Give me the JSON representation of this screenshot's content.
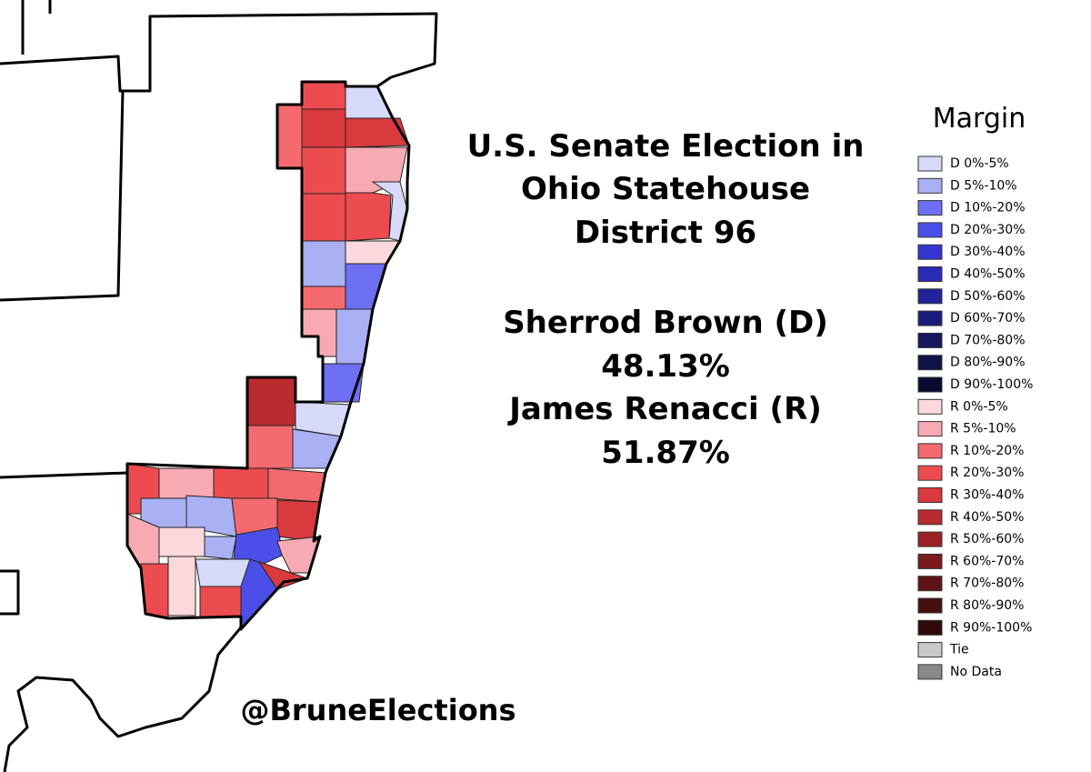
{
  "title": [
    "U.S. Senate Election in",
    "Ohio Statehouse",
    "District 96"
  ],
  "candidates": [
    {
      "name": "Sherrod Brown (D)",
      "share": "48.13%"
    },
    {
      "name": "James Renacci (R)",
      "share": "51.87%"
    }
  ],
  "legend": {
    "title": "Margin",
    "items": [
      {
        "label": "D 0%-5%",
        "color": "#d6d9f7"
      },
      {
        "label": "D 5%-10%",
        "color": "#aab0f4"
      },
      {
        "label": "D 10%-20%",
        "color": "#6d70f2"
      },
      {
        "label": "D 20%-30%",
        "color": "#4b4fe8"
      },
      {
        "label": "D 30%-40%",
        "color": "#3436cf"
      },
      {
        "label": "D 40%-50%",
        "color": "#2a2cb5"
      },
      {
        "label": "D 50%-60%",
        "color": "#22239a"
      },
      {
        "label": "D 60%-70%",
        "color": "#1b1c7a"
      },
      {
        "label": "D 70%-80%",
        "color": "#15165e"
      },
      {
        "label": "D 80%-90%",
        "color": "#101146"
      },
      {
        "label": "D 90%-100%",
        "color": "#0b0b2f"
      },
      {
        "label": "R 0%-5%",
        "color": "#fbd8dc"
      },
      {
        "label": "R 5%-10%",
        "color": "#f8aab2"
      },
      {
        "label": "R 10%-20%",
        "color": "#f46a6e"
      },
      {
        "label": "R 20%-30%",
        "color": "#ec4c4f"
      },
      {
        "label": "R 30%-40%",
        "color": "#d83a3e"
      },
      {
        "label": "R 40%-50%",
        "color": "#b82c30"
      },
      {
        "label": "R 50%-60%",
        "color": "#9a2226"
      },
      {
        "label": "R 60%-70%",
        "color": "#7a1a1d"
      },
      {
        "label": "R 70%-80%",
        "color": "#5e1416"
      },
      {
        "label": "R 80%-90%",
        "color": "#460f10"
      },
      {
        "label": "R 90%-100%",
        "color": "#2f0a0a"
      },
      {
        "label": "Tie",
        "color": "#c8c8c8"
      },
      {
        "label": "No Data",
        "color": "#888888"
      }
    ]
  },
  "credit": "@BruneElections"
}
